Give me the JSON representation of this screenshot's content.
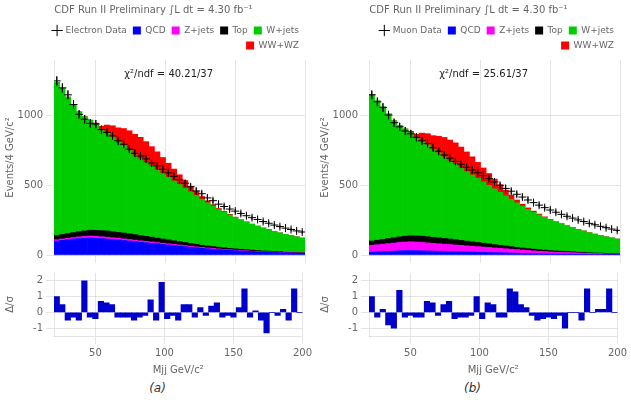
{
  "chart_data": [
    {
      "type": "bar",
      "title": "CDF Run II Preliminary ∫L dt = 4.30 fb⁻¹",
      "ylabel": "Events/4 GeV/c²",
      "bins": [
        20,
        24,
        28,
        32,
        36,
        40,
        44,
        48,
        52,
        56,
        60,
        64,
        68,
        72,
        76,
        80,
        84,
        88,
        92,
        96,
        100,
        104,
        108,
        112,
        116,
        120,
        124,
        128,
        132,
        136,
        140,
        144,
        148,
        152,
        156,
        160,
        164,
        168,
        172,
        176,
        180,
        184,
        188,
        192,
        196,
        200
      ],
      "series": [
        {
          "name": "Electron Data",
          "type": "scatter",
          "marker": "plus",
          "color": "#000000",
          "values": [
            1250,
            1200,
            1150,
            1080,
            1010,
            975,
            945,
            940,
            900,
            880,
            855,
            820,
            795,
            760,
            730,
            710,
            690,
            660,
            640,
            615,
            590,
            565,
            540,
            515,
            490,
            460,
            440,
            410,
            390,
            365,
            348,
            330,
            315,
            298,
            282,
            268,
            255,
            240,
            228,
            215,
            204,
            193,
            183,
            173,
            165
          ],
          "errors": [
            35,
            34,
            33,
            32,
            31,
            31,
            30,
            30,
            29,
            29,
            28,
            28,
            27,
            27,
            26,
            26,
            25,
            25,
            24,
            24,
            23,
            23,
            22,
            22,
            21,
            21,
            20,
            20,
            19,
            19,
            18,
            18,
            17,
            17,
            16,
            16,
            15,
            15,
            14,
            14,
            13,
            13,
            13,
            12,
            12
          ]
        },
        {
          "name": "QCD",
          "type": "bar",
          "color": "#0000ff",
          "values": [
            100,
            105,
            110,
            115,
            118,
            120,
            122,
            120,
            118,
            115,
            112,
            108,
            104,
            100,
            96,
            92,
            88,
            84,
            80,
            76,
            72,
            68,
            64,
            60,
            56,
            52,
            48,
            45,
            42,
            39,
            36,
            33,
            31,
            29,
            27,
            25,
            23,
            21,
            20,
            18,
            17,
            15,
            14,
            13,
            12
          ]
        },
        {
          "name": "Z+jets",
          "type": "bar",
          "color": "#ff00ff",
          "values": [
            10,
            10,
            10,
            10,
            12,
            13,
            14,
            14,
            13,
            13,
            12,
            12,
            12,
            11,
            11,
            10,
            10,
            10,
            9,
            9,
            9,
            8,
            8,
            8,
            7,
            7,
            6,
            6,
            6,
            5,
            5,
            5,
            4,
            4,
            4,
            3,
            3,
            3,
            3,
            2,
            2,
            2,
            2,
            2,
            2
          ]
        },
        {
          "name": "Top",
          "type": "bar",
          "color": "#000000",
          "values": [
            30,
            32,
            34,
            36,
            38,
            40,
            42,
            43,
            44,
            45,
            44,
            43,
            42,
            41,
            40,
            38,
            36,
            34,
            32,
            30,
            28,
            26,
            24,
            22,
            20,
            18,
            16,
            14,
            13,
            12,
            11,
            10,
            9,
            8,
            7,
            7,
            6,
            5,
            5,
            4,
            4,
            3,
            3,
            3,
            2
          ]
        },
        {
          "name": "W+jets",
          "type": "bar",
          "color": "#00cc00",
          "values": [
            1100,
            1050,
            980,
            920,
            860,
            820,
            790,
            760,
            720,
            700,
            680,
            650,
            630,
            600,
            570,
            550,
            530,
            510,
            490,
            470,
            450,
            430,
            410,
            390,
            370,
            350,
            330,
            310,
            290,
            270,
            255,
            240,
            225,
            210,
            198,
            186,
            175,
            165,
            155,
            145,
            136,
            128,
            120,
            113,
            106
          ]
        },
        {
          "name": "WW+WZ",
          "type": "bar",
          "color": "#ff0000",
          "values": [
            0,
            0,
            0,
            0,
            0,
            0,
            0,
            10,
            30,
            60,
            80,
            100,
            120,
            140,
            150,
            155,
            150,
            140,
            130,
            115,
            100,
            85,
            70,
            55,
            40,
            30,
            20,
            15,
            10,
            8,
            6,
            4,
            3,
            2,
            2,
            1,
            1,
            0,
            0,
            0,
            0,
            0,
            0,
            0,
            0
          ]
        }
      ],
      "stacked": true,
      "xlim": [
        20,
        200
      ],
      "xticks": [
        50,
        100,
        150,
        200
      ],
      "ylim": [
        0,
        1400
      ],
      "yticks": [
        0,
        500,
        1000
      ],
      "grid": true,
      "legend": "upper right",
      "tick_labels": "y",
      "annotations": [
        "χ²/ndf = 40.21/37"
      ]
    },
    {
      "type": "bar",
      "xlabel": "Mjj GeV/c²",
      "ylabel": "Δ/σ",
      "bins": [
        20,
        24,
        28,
        32,
        36,
        40,
        44,
        48,
        52,
        56,
        60,
        64,
        68,
        72,
        76,
        80,
        84,
        88,
        92,
        96,
        100,
        104,
        108,
        112,
        116,
        120,
        124,
        128,
        132,
        136,
        140,
        144,
        148,
        152,
        156,
        160,
        164,
        168,
        172,
        176,
        180,
        184,
        188,
        192,
        196,
        200
      ],
      "series": [
        {
          "type": "bar",
          "color": "#0000cc",
          "values": [
            1.0,
            0.5,
            -0.5,
            -0.3,
            -0.5,
            2.0,
            -0.3,
            -0.4,
            0.7,
            0.6,
            0.5,
            -0.3,
            -0.3,
            -0.3,
            -0.5,
            -0.3,
            -0.2,
            0.8,
            -0.5,
            1.9,
            -0.4,
            -0.2,
            -0.5,
            0.5,
            0.5,
            -0.3,
            0.3,
            -0.2,
            0.4,
            0.6,
            -0.3,
            -0.2,
            -0.3,
            0.3,
            1.5,
            -0.3,
            0.1,
            -0.5,
            -1.3,
            0.0,
            -0.2,
            0.2,
            -0.5,
            1.5,
            0.0
          ]
        }
      ],
      "xlim": [
        20,
        200
      ],
      "xticks": [
        50,
        100,
        150,
        200
      ],
      "ylim": [
        -1.5,
        2.5
      ],
      "yticks": [
        -1,
        0,
        1,
        2
      ],
      "grid": true,
      "annotations": [
        "(a)"
      ]
    },
    {
      "type": "bar",
      "title": "CDF Run II Preliminary ∫L dt = 4.30 fb⁻¹",
      "ylabel": "Events/4 GeV/c²",
      "bins": [
        20,
        24,
        28,
        32,
        36,
        40,
        44,
        48,
        52,
        56,
        60,
        64,
        68,
        72,
        76,
        80,
        84,
        88,
        92,
        96,
        100,
        104,
        108,
        112,
        116,
        120,
        124,
        128,
        132,
        136,
        140,
        144,
        148,
        152,
        156,
        160,
        164,
        168,
        172,
        176,
        180,
        184,
        188,
        192,
        196,
        200
      ],
      "series": [
        {
          "name": "Muon Data",
          "type": "scatter",
          "marker": "plus",
          "color": "#000000",
          "values": [
            1150,
            1100,
            1060,
            1005,
            950,
            920,
            890,
            870,
            845,
            820,
            800,
            770,
            745,
            718,
            695,
            672,
            652,
            630,
            610,
            590,
            570,
            548,
            524,
            500,
            478,
            458,
            436,
            416,
            395,
            376,
            358,
            340,
            323,
            307,
            292,
            278,
            265,
            252,
            240,
            227,
            217,
            206,
            196,
            186,
            177
          ],
          "errors": [
            33,
            32,
            32,
            31,
            30,
            30,
            29,
            29,
            28,
            28,
            27,
            27,
            26,
            26,
            25,
            25,
            24,
            24,
            23,
            23,
            23,
            22,
            22,
            21,
            21,
            20,
            20,
            19,
            19,
            18,
            18,
            17,
            17,
            16,
            16,
            16,
            15,
            15,
            14,
            14,
            13,
            13,
            13,
            12,
            12
          ]
        },
        {
          "name": "QCD",
          "type": "bar",
          "color": "#0000ff",
          "values": [
            20,
            22,
            24,
            26,
            28,
            30,
            31,
            32,
            31,
            30,
            29,
            28,
            27,
            26,
            25,
            24,
            23,
            22,
            21,
            20,
            19,
            18,
            17,
            16,
            15,
            14,
            13,
            12,
            11,
            10,
            9,
            8,
            8,
            7,
            7,
            6,
            6,
            5,
            5,
            4,
            4,
            4,
            3,
            3,
            3
          ]
        },
        {
          "name": "Z+jets",
          "type": "bar",
          "color": "#ff00ff",
          "values": [
            50,
            52,
            54,
            56,
            58,
            60,
            62,
            63,
            62,
            60,
            58,
            56,
            54,
            52,
            50,
            48,
            46,
            44,
            42,
            40,
            38,
            36,
            34,
            32,
            30,
            28,
            26,
            24,
            22,
            20,
            18,
            17,
            15,
            14,
            13,
            12,
            11,
            10,
            9,
            8,
            7,
            7,
            6,
            5,
            5
          ]
        },
        {
          "name": "Top",
          "type": "bar",
          "color": "#000000",
          "values": [
            30,
            32,
            34,
            36,
            38,
            40,
            42,
            43,
            44,
            45,
            44,
            43,
            42,
            41,
            40,
            38,
            36,
            34,
            32,
            30,
            28,
            26,
            24,
            22,
            20,
            18,
            16,
            14,
            13,
            12,
            11,
            10,
            9,
            8,
            7,
            7,
            6,
            5,
            5,
            4,
            4,
            3,
            3,
            3,
            2
          ]
        },
        {
          "name": "W+jets",
          "type": "bar",
          "color": "#00cc00",
          "values": [
            1050,
            1000,
            950,
            895,
            840,
            800,
            770,
            740,
            700,
            680,
            660,
            630,
            610,
            585,
            560,
            540,
            520,
            500,
            480,
            460,
            440,
            420,
            400,
            380,
            360,
            340,
            320,
            300,
            282,
            265,
            250,
            235,
            220,
            208,
            196,
            184,
            174,
            164,
            154,
            144,
            135,
            127,
            119,
            112,
            105
          ]
        },
        {
          "name": "WW+WZ",
          "type": "bar",
          "color": "#ff0000",
          "values": [
            0,
            0,
            0,
            0,
            0,
            0,
            0,
            10,
            30,
            60,
            80,
            100,
            120,
            140,
            150,
            155,
            150,
            140,
            130,
            115,
            100,
            85,
            70,
            55,
            40,
            30,
            20,
            15,
            10,
            8,
            6,
            4,
            3,
            2,
            2,
            1,
            1,
            0,
            0,
            0,
            0,
            0,
            0,
            0,
            0
          ]
        }
      ],
      "stacked": true,
      "xlim": [
        20,
        200
      ],
      "xticks": [
        50,
        100,
        150,
        200
      ],
      "ylim": [
        0,
        1400
      ],
      "yticks": [
        0,
        500,
        1000
      ],
      "grid": true,
      "legend": "upper right",
      "tick_labels": "y",
      "annotations": [
        "χ²/ndf = 25.61/37"
      ]
    },
    {
      "type": "bar",
      "xlabel": "Mjj GeV/c²",
      "ylabel": "Δ/σ",
      "bins": [
        20,
        24,
        28,
        32,
        36,
        40,
        44,
        48,
        52,
        56,
        60,
        64,
        68,
        72,
        76,
        80,
        84,
        88,
        92,
        96,
        100,
        104,
        108,
        112,
        116,
        120,
        124,
        128,
        132,
        136,
        140,
        144,
        148,
        152,
        156,
        160,
        164,
        168,
        172,
        176,
        180,
        184,
        188,
        192,
        196,
        200
      ],
      "series": [
        {
          "type": "bar",
          "color": "#0000cc",
          "values": [
            1.0,
            -0.3,
            0.2,
            -0.8,
            -1.0,
            1.4,
            -0.3,
            -0.2,
            -0.3,
            -0.3,
            0.7,
            0.6,
            -0.2,
            0.5,
            0.7,
            -0.4,
            -0.3,
            -0.3,
            -0.2,
            1.0,
            -0.4,
            0.6,
            0.5,
            -0.3,
            -0.3,
            1.5,
            1.3,
            0.5,
            0.3,
            -0.2,
            -0.5,
            -0.4,
            -0.3,
            -0.4,
            -0.2,
            -1.0,
            0.0,
            0.0,
            -0.5,
            1.5,
            0.0,
            0.2,
            0.2,
            1.5,
            0.0
          ]
        }
      ],
      "xlim": [
        20,
        200
      ],
      "xticks": [
        50,
        100,
        150,
        200
      ],
      "ylim": [
        -1.5,
        2.5
      ],
      "yticks": [
        -1,
        0,
        1,
        2
      ],
      "grid": true,
      "annotations": [
        "(b)"
      ]
    }
  ]
}
